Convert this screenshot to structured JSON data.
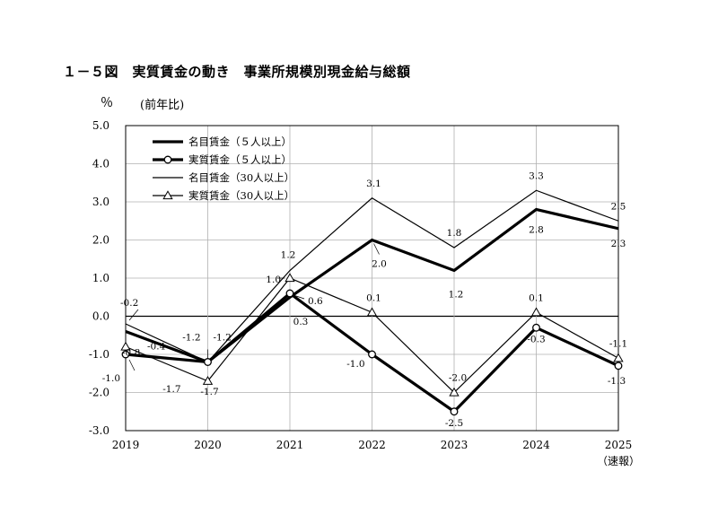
{
  "page": {
    "title": "１－５図　実質賃金の動き　事業所規模別現金給与総額",
    "unit": "％",
    "yoy": "(前年比)"
  },
  "chart_data": {
    "type": "line",
    "title": "",
    "xlabel": "",
    "ylabel": "％",
    "x": [
      "2019",
      "2020",
      "2021",
      "2022",
      "2023",
      "2024",
      "2025"
    ],
    "x_note": "（速報）",
    "ylim": [
      -3.0,
      5.0
    ],
    "yticks": [
      "5.0",
      "4.0",
      "3.0",
      "2.0",
      "1.0",
      "0.0",
      "-1.0",
      "-2.0",
      "-3.0"
    ],
    "grid": true,
    "legend_position": "top-left",
    "series": [
      {
        "name": "名目賃金（５人以上）",
        "values": [
          -0.4,
          -1.2,
          0.5,
          2.0,
          1.2,
          2.8,
          2.3
        ],
        "style": "thick",
        "marker": "none",
        "labels": [
          "-0.4",
          "-1.2",
          "",
          "2.0",
          "1.2",
          "2.8",
          "2.3"
        ]
      },
      {
        "name": "実質賃金（５人以上）",
        "values": [
          -1.0,
          -1.2,
          0.6,
          -1.0,
          -2.5,
          -0.3,
          -1.3
        ],
        "style": "thick",
        "marker": "circle",
        "labels": [
          "-1.0",
          "-1.2",
          "0.6",
          "-1.0",
          "-2.5",
          "-0.3",
          "-1.3"
        ]
      },
      {
        "name": "名目賃金（30人以上）",
        "values": [
          -0.2,
          -1.2,
          1.2,
          3.1,
          1.8,
          3.3,
          2.5
        ],
        "style": "thin",
        "marker": "none",
        "labels": [
          "-0.2",
          "",
          "1.2",
          "3.1",
          "1.8",
          "3.3",
          "2.5"
        ]
      },
      {
        "name": "実質賃金（30人以上）",
        "values": [
          -0.8,
          -1.7,
          1.0,
          0.1,
          -2.0,
          0.1,
          -1.1
        ],
        "style": "thin",
        "marker": "triangle",
        "labels": [
          "-0.8",
          "-1.7",
          "1.0",
          "0.1",
          "-2.0",
          "0.1",
          "-1.1"
        ]
      }
    ],
    "annotations": [
      "-1.7",
      "0.3"
    ]
  }
}
